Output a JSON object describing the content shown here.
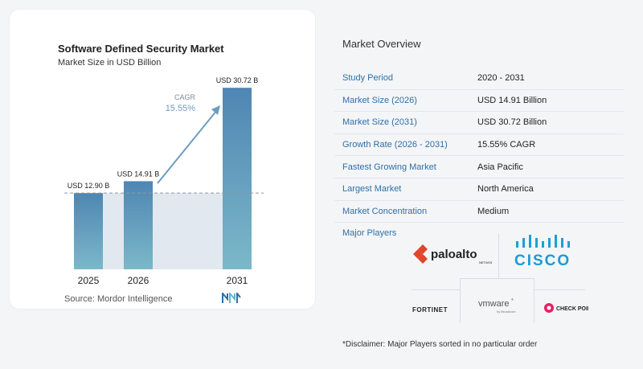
{
  "chart_data": {
    "type": "bar",
    "title": "Software Defined Security Market",
    "subtitle": "Market Size in USD Billion",
    "categories": [
      "2025",
      "2026",
      "2031"
    ],
    "values": [
      12.9,
      14.91,
      30.72
    ],
    "data_labels": [
      "USD 12.90 B",
      "USD 14.91 B",
      "USD 30.72 B"
    ],
    "cagr_label": "CAGR",
    "cagr_value": "15.55%",
    "bar_color": "#5b93b9",
    "shade_color": "#e1e8ef",
    "arrow_color": "#6e9cc0"
  },
  "source": "Source:  Mordor Intelligence",
  "overview": {
    "title": "Market Overview",
    "rows": [
      {
        "key": "Study Period",
        "value": "2020 - 2031"
      },
      {
        "key": "Market Size (2026)",
        "value": "USD 14.91 Billion"
      },
      {
        "key": "Market Size (2031)",
        "value": "USD 30.72 Billion"
      },
      {
        "key": "Growth Rate (2026 - 2031)",
        "value": "15.55% CAGR"
      },
      {
        "key": "Fastest Growing Market",
        "value": "Asia Pacific"
      },
      {
        "key": "Largest Market",
        "value": "North America"
      },
      {
        "key": "Market Concentration",
        "value": "Medium"
      }
    ]
  },
  "players": {
    "label": "Major Players",
    "names": [
      "paloalto",
      "NETWORKS",
      "CISCO",
      "FORTINET",
      "vmware",
      "by Broadcom",
      "CHECK POINT"
    ]
  },
  "disclaimer": "*Disclaimer: Major Players sorted in no particular order"
}
